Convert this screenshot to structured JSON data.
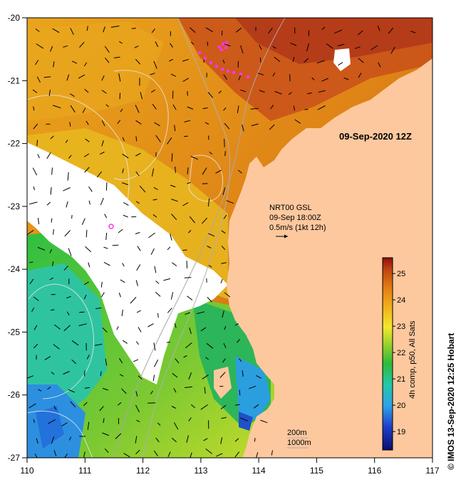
{
  "map": {
    "date_title": "09-Sep-2020 12Z",
    "current_info": {
      "line1": "NRT00 GSL",
      "line2": "09-Sep 18:00Z",
      "line3": "0.5m/s (1kt 12h)"
    },
    "bathymetry_labels": [
      "200m",
      "1000m"
    ],
    "credit": "© IMOS 13-Sep-2020 12:25 Hobart",
    "colorbar": {
      "label": "4h comp, p50, All Sats",
      "ticks": [
        "19",
        "20",
        "21",
        "22",
        "23",
        "24",
        "25"
      ],
      "range": [
        18.3,
        25.6
      ]
    },
    "x_ticks": [
      "110",
      "111",
      "112",
      "113",
      "114",
      "115",
      "116",
      "117"
    ],
    "y_ticks": [
      "-20",
      "-21",
      "-22",
      "-23",
      "-24",
      "-25",
      "-26",
      "-27"
    ],
    "colors": {
      "land": "#fdc89e",
      "no_data": "#ffffff",
      "track": "#ff33ee"
    }
  }
}
